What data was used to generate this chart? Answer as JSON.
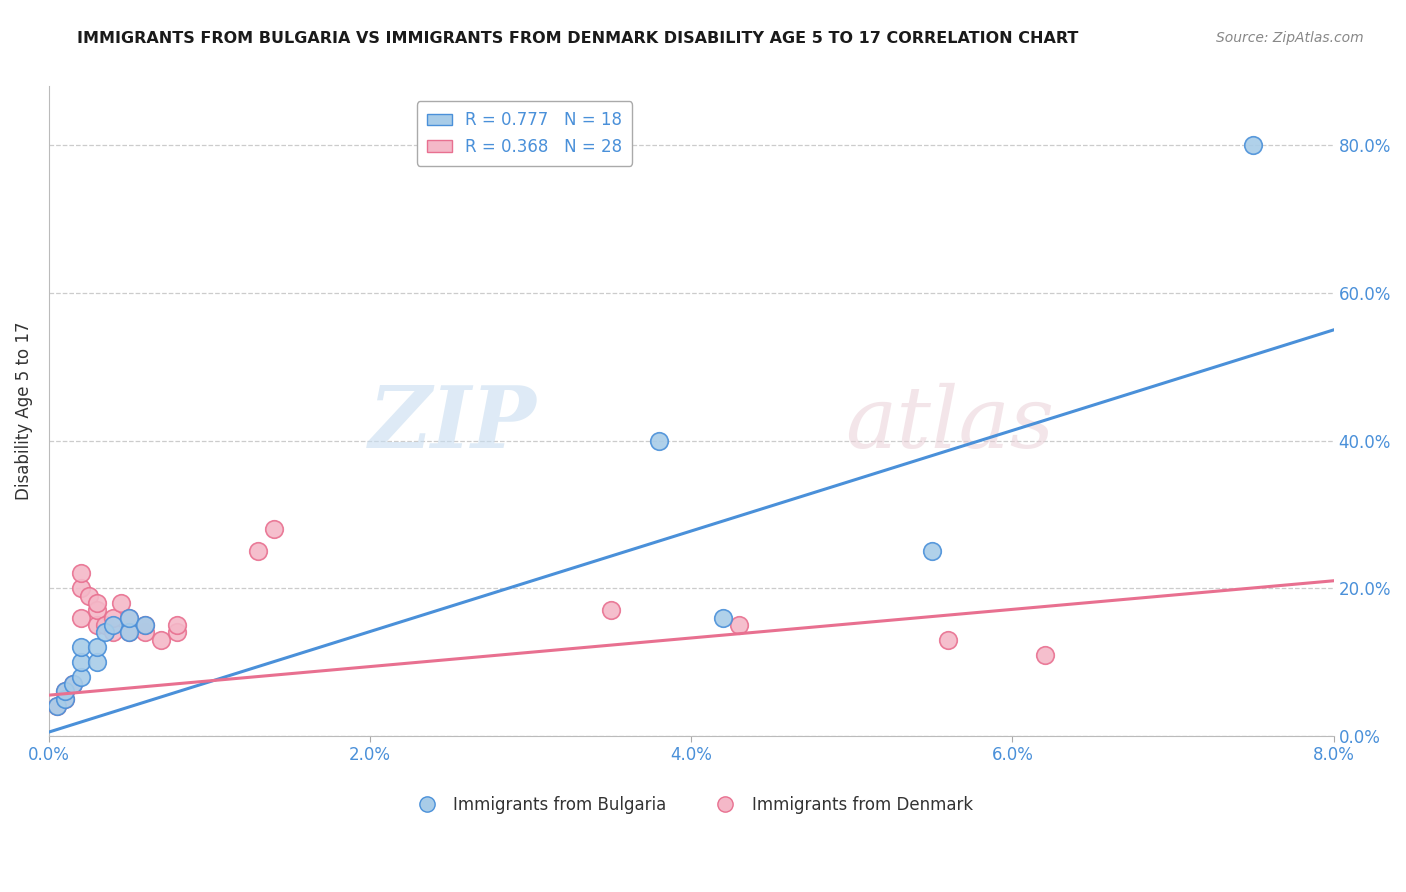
{
  "title": "IMMIGRANTS FROM BULGARIA VS IMMIGRANTS FROM DENMARK DISABILITY AGE 5 TO 17 CORRELATION CHART",
  "source": "Source: ZipAtlas.com",
  "ylabel": "Disability Age 5 to 17",
  "xlim": [
    0.0,
    0.08
  ],
  "ylim": [
    0.0,
    0.88
  ],
  "yticks": [
    0.0,
    0.2,
    0.4,
    0.6,
    0.8
  ],
  "xticks": [
    0.0,
    0.02,
    0.04,
    0.06,
    0.08
  ],
  "blue_color": "#a8cce8",
  "pink_color": "#f4b8c8",
  "blue_line_color": "#4a90d9",
  "pink_line_color": "#e87090",
  "legend_blue_label": "R = 0.777   N = 18",
  "legend_pink_label": "R = 0.368   N = 28",
  "legend_bottom_blue": "Immigrants from Bulgaria",
  "legend_bottom_pink": "Immigrants from Denmark",
  "blue_scatter_x": [
    0.0005,
    0.001,
    0.001,
    0.0015,
    0.002,
    0.002,
    0.002,
    0.003,
    0.003,
    0.0035,
    0.004,
    0.005,
    0.005,
    0.006,
    0.038,
    0.042,
    0.055,
    0.075
  ],
  "blue_scatter_y": [
    0.04,
    0.05,
    0.06,
    0.07,
    0.08,
    0.1,
    0.12,
    0.1,
    0.12,
    0.14,
    0.15,
    0.14,
    0.16,
    0.15,
    0.4,
    0.16,
    0.25,
    0.8
  ],
  "pink_scatter_x": [
    0.0005,
    0.001,
    0.001,
    0.0015,
    0.002,
    0.002,
    0.002,
    0.0025,
    0.003,
    0.003,
    0.003,
    0.0035,
    0.004,
    0.004,
    0.0045,
    0.005,
    0.005,
    0.006,
    0.006,
    0.007,
    0.008,
    0.008,
    0.013,
    0.014,
    0.035,
    0.043,
    0.056,
    0.062
  ],
  "pink_scatter_y": [
    0.04,
    0.05,
    0.06,
    0.07,
    0.16,
    0.2,
    0.22,
    0.19,
    0.15,
    0.17,
    0.18,
    0.15,
    0.14,
    0.16,
    0.18,
    0.14,
    0.16,
    0.14,
    0.15,
    0.13,
    0.14,
    0.15,
    0.25,
    0.28,
    0.17,
    0.15,
    0.13,
    0.11
  ],
  "blue_line_x": [
    0.0,
    0.08
  ],
  "blue_line_y": [
    0.005,
    0.55
  ],
  "pink_line_x": [
    0.0,
    0.08
  ],
  "pink_line_y": [
    0.055,
    0.21
  ]
}
